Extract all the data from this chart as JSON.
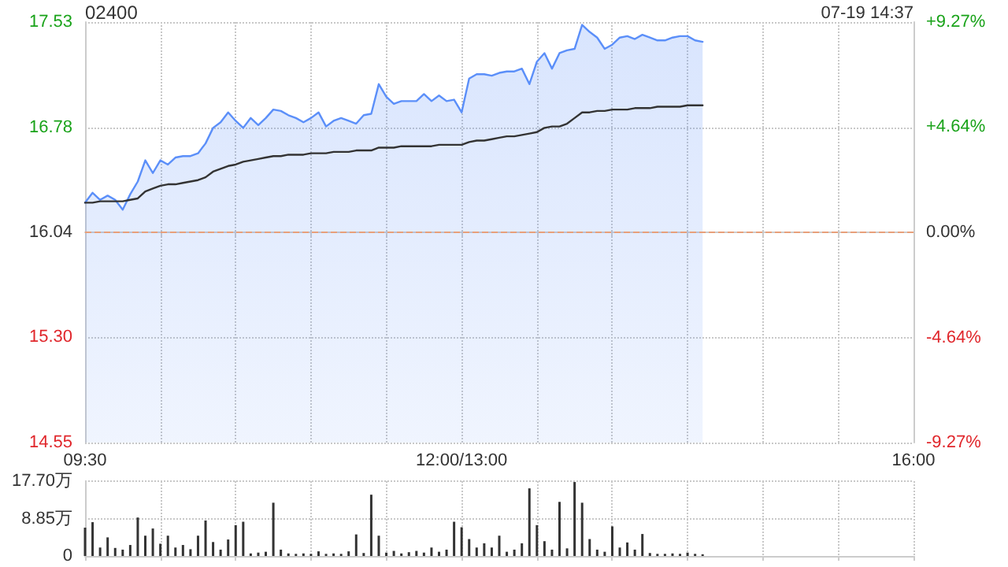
{
  "chart_data": [
    {
      "type": "line",
      "title": "02400",
      "annotations": [
        "07-19 14:37"
      ],
      "grid": true,
      "marker": "none",
      "line_style": "solid",
      "categories": [
        "09:30",
        null,
        null,
        null,
        null,
        null,
        null,
        null,
        null,
        null,
        null,
        null,
        null,
        null,
        null,
        null,
        null,
        null,
        null,
        null,
        null,
        null,
        null,
        null,
        null,
        null,
        null,
        null,
        null,
        null,
        null,
        null,
        null,
        null,
        null,
        null,
        null,
        null,
        null,
        null,
        null,
        null,
        null,
        null,
        null,
        null,
        null,
        null,
        null,
        null,
        "12:00/13:00",
        null,
        null,
        null,
        null,
        null,
        null,
        null,
        null,
        null,
        null,
        null,
        null,
        null,
        null,
        null,
        null,
        null,
        null,
        null,
        null,
        null,
        null,
        null,
        null,
        null,
        null,
        null,
        null,
        null,
        null,
        null,
        null,
        null,
        null,
        null,
        null,
        null,
        null,
        null,
        null,
        null,
        null,
        null,
        null,
        null,
        null,
        null,
        null,
        null,
        null,
        null,
        null,
        null,
        null,
        null,
        null,
        null,
        null,
        null,
        "16:00"
      ],
      "ylim": [
        14.55,
        17.53
      ],
      "yticks": [
        14.55,
        {
          "value": 15.3,
          "label": "15.30"
        },
        16.04,
        16.78,
        17.53
      ],
      "y2lim": [
        -9.27,
        9.27
      ],
      "y2ticks": [
        {
          "value": -9.27,
          "label": "-9.27%"
        },
        {
          "value": -4.64,
          "label": "-4.64%"
        },
        {
          "value": 0,
          "label": "0.00%"
        },
        {
          "value": 4.64,
          "label": "+4.64%"
        },
        {
          "value": 9.27,
          "label": "+9.27%"
        }
      ],
      "ref_lines": [
        {
          "axis": "y",
          "value": 16.04,
          "color": "#e8a07a",
          "line_style": "dashed"
        }
      ],
      "series": [
        {
          "type": "area",
          "color": "#5b8ff9",
          "values": [
            16.25,
            16.32,
            16.27,
            16.3,
            16.27,
            16.2,
            16.31,
            16.4,
            16.55,
            16.46,
            16.55,
            16.52,
            16.57,
            16.58,
            16.58,
            16.6,
            16.67,
            16.78,
            16.82,
            16.89,
            16.83,
            16.78,
            16.85,
            16.8,
            16.85,
            16.91,
            16.9,
            16.87,
            16.85,
            16.82,
            16.85,
            16.89,
            16.79,
            16.83,
            16.85,
            16.83,
            16.81,
            16.87,
            16.88,
            17.09,
            17.0,
            16.95,
            16.97,
            16.97,
            16.97,
            17.02,
            16.97,
            17.01,
            16.97,
            16.98,
            16.89,
            17.13,
            17.16,
            17.16,
            17.15,
            17.17,
            17.18,
            17.18,
            17.2,
            17.09,
            17.25,
            17.31,
            17.2,
            17.31,
            17.33,
            17.34,
            17.51,
            17.46,
            17.42,
            17.34,
            17.37,
            17.42,
            17.43,
            17.41,
            17.44,
            17.42,
            17.4,
            17.4,
            17.42,
            17.43,
            17.43,
            17.4,
            17.39,
            null,
            null,
            null,
            null,
            null,
            null,
            null,
            null,
            null,
            null,
            null,
            null,
            null,
            null,
            null,
            null,
            null,
            null,
            null,
            null,
            null,
            null,
            null,
            null,
            null,
            null,
            null,
            null
          ]
        },
        {
          "type": "line",
          "color": "#333333",
          "values": [
            16.25,
            16.25,
            16.26,
            16.26,
            16.26,
            16.26,
            16.27,
            16.28,
            16.33,
            16.35,
            16.37,
            16.38,
            16.38,
            16.39,
            16.4,
            16.41,
            16.43,
            16.47,
            16.49,
            16.51,
            16.52,
            16.54,
            16.55,
            16.56,
            16.57,
            16.58,
            16.58,
            16.59,
            16.59,
            16.59,
            16.6,
            16.6,
            16.6,
            16.61,
            16.61,
            16.61,
            16.62,
            16.62,
            16.62,
            16.64,
            16.64,
            16.64,
            16.65,
            16.65,
            16.65,
            16.65,
            16.65,
            16.66,
            16.66,
            16.66,
            16.66,
            16.68,
            16.69,
            16.69,
            16.7,
            16.71,
            16.72,
            16.72,
            16.73,
            16.74,
            16.75,
            16.78,
            16.79,
            16.79,
            16.81,
            16.85,
            16.89,
            16.89,
            16.9,
            16.9,
            16.91,
            16.91,
            16.91,
            16.92,
            16.92,
            16.92,
            16.93,
            16.93,
            16.93,
            16.93,
            16.94,
            16.94,
            16.94,
            null,
            null,
            null,
            null,
            null,
            null,
            null,
            null,
            null,
            null,
            null,
            null,
            null,
            null,
            null,
            null,
            null,
            null,
            null,
            null,
            null,
            null,
            null,
            null,
            null,
            null,
            null,
            null
          ]
        }
      ]
    },
    {
      "type": "bar",
      "grid": true,
      "tick_labels": "y",
      "color": "#333333",
      "categories": [
        null,
        null,
        null,
        null,
        null,
        null,
        null,
        null,
        null,
        null,
        null,
        null,
        null,
        null,
        null,
        null,
        null,
        null,
        null,
        null,
        null,
        null,
        null,
        null,
        null,
        null,
        null,
        null,
        null,
        null,
        null,
        null,
        null,
        null,
        null,
        null,
        null,
        null,
        null,
        null,
        null,
        null,
        null,
        null,
        null,
        null,
        null,
        null,
        null,
        null,
        null,
        null,
        null,
        null,
        null,
        null,
        null,
        null,
        null,
        null,
        null,
        null,
        null,
        null,
        null,
        null,
        null,
        null,
        null,
        null,
        null,
        null,
        null,
        null,
        null,
        null,
        null,
        null,
        null,
        null,
        null,
        null,
        null,
        null,
        null,
        null,
        null,
        null,
        null,
        null,
        null,
        null,
        null,
        null,
        null,
        null,
        null,
        null,
        null,
        null,
        null,
        null,
        null,
        null,
        null,
        null,
        null,
        null,
        null,
        null,
        null
      ],
      "ylim": [
        0,
        17.7
      ],
      "yticks": [
        0,
        {
          "value": 8.85,
          "label": "8.85万"
        },
        {
          "value": 17.7,
          "label": "17.70万"
        }
      ],
      "values": [
        6.7,
        8.0,
        2.0,
        4.4,
        1.9,
        1.5,
        2.6,
        9.1,
        4.8,
        6.5,
        2.9,
        4.8,
        2.0,
        2.6,
        1.6,
        4.8,
        8.4,
        3.3,
        1.5,
        3.9,
        7.3,
        8.1,
        0.6,
        0.8,
        1.0,
        12.6,
        1.5,
        0.6,
        0.5,
        0.6,
        0.5,
        1.1,
        0.5,
        0.6,
        0.5,
        1.1,
        5.1,
        0.7,
        14.5,
        4.8,
        0.8,
        1.2,
        0.6,
        0.9,
        1.2,
        0.8,
        2.0,
        1.0,
        1.5,
        8.1,
        6.8,
        4.0,
        2.0,
        3.0,
        2.0,
        4.8,
        1.0,
        1.5,
        3.0,
        16.0,
        7.3,
        3.5,
        1.5,
        12.8,
        1.8,
        17.5,
        12.6,
        4.0,
        1.5,
        1.0,
        7.0,
        2.0,
        3.2,
        1.5,
        5.2,
        0.7,
        0.5,
        0.5,
        0.6,
        0.5,
        0.8,
        0.5,
        0.4,
        null,
        null,
        null,
        null,
        null,
        null,
        null,
        null,
        null,
        null,
        null,
        null,
        null,
        null,
        null,
        null,
        null,
        null,
        null,
        null,
        null,
        null,
        null,
        null,
        null,
        null,
        null,
        null
      ]
    }
  ]
}
